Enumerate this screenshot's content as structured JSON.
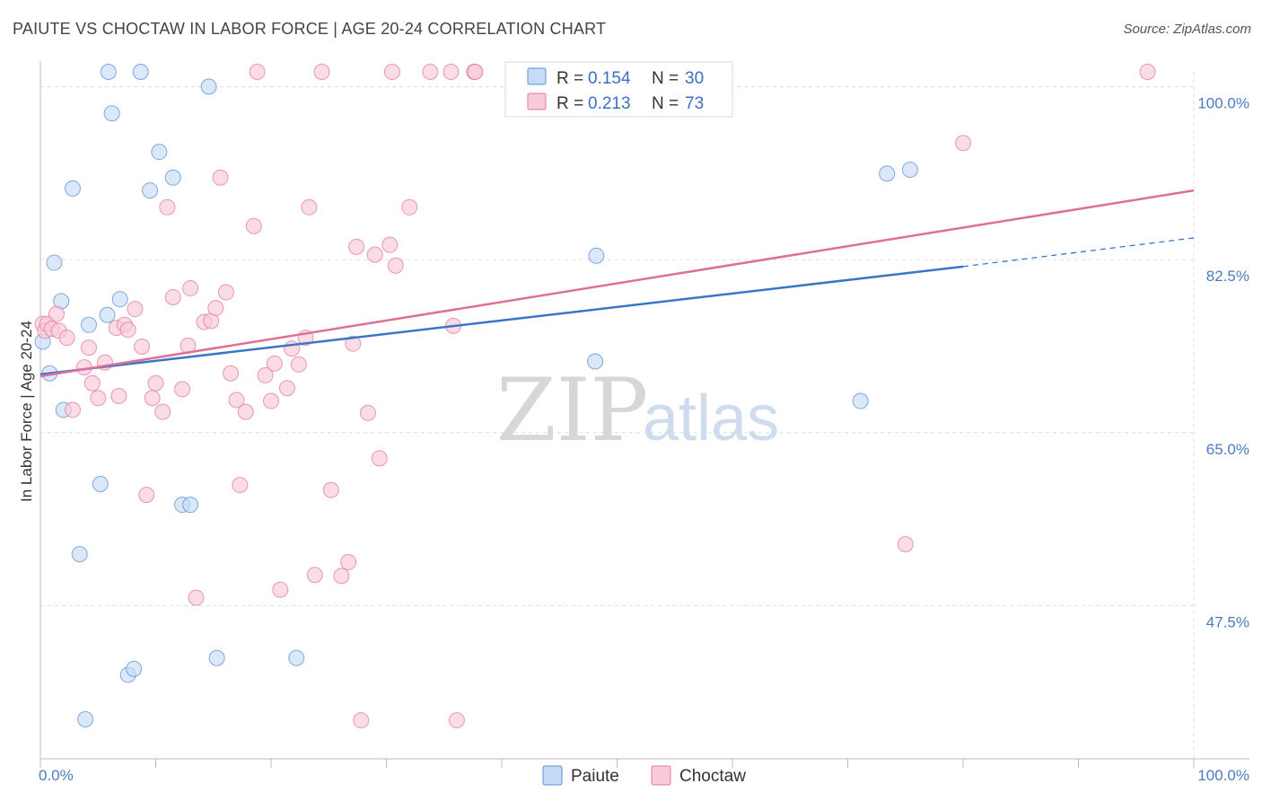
{
  "title": "PAIUTE VS CHOCTAW IN LABOR FORCE | AGE 20-24 CORRELATION CHART",
  "source": "Source: ZipAtlas.com",
  "watermark": {
    "zip": "ZIP",
    "atlas": "atlas"
  },
  "colors": {
    "paiute": "#5b8fd6",
    "paiute_fill": "#c6dbf7",
    "choctaw": "#e07a9e",
    "choctaw_fill": "#f9cad9",
    "paiute_line": "#3a76c8",
    "choctaw_line": "#e06f98",
    "grid": "#dedede"
  },
  "legend": {
    "rows": [
      {
        "r_label": "R = ",
        "r_value": "0.154",
        "n_label": "N = ",
        "n_value": "30"
      },
      {
        "r_label": "R = ",
        "r_value": "0.213",
        "n_label": "N = ",
        "n_value": "73"
      }
    ]
  },
  "chart_data": {
    "type": "scatter",
    "title": "PAIUTE VS CHOCTAW IN LABOR FORCE | AGE 20-24 CORRELATION CHART",
    "xlabel": "",
    "ylabel": "In Labor Force | Age 20-24",
    "xlim": [
      0,
      100
    ],
    "ylim": [
      32.0,
      101.5
    ],
    "x_tick_labels": [
      "0.0%",
      "100.0%"
    ],
    "y_ticks": [
      {
        "value": 100.0,
        "label": "100.0%"
      },
      {
        "value": 82.5,
        "label": "82.5%"
      },
      {
        "value": 65.0,
        "label": "65.0%"
      },
      {
        "value": 47.5,
        "label": "47.5%"
      }
    ],
    "grid": true,
    "legend_position": "top-center",
    "series": [
      {
        "name": "Paiute",
        "points": [
          [
            0.2,
            74.2
          ],
          [
            0.8,
            71.0
          ],
          [
            1.2,
            82.2
          ],
          [
            1.8,
            78.3
          ],
          [
            2.0,
            67.3
          ],
          [
            2.8,
            89.7
          ],
          [
            3.4,
            52.7
          ],
          [
            3.9,
            36.0
          ],
          [
            4.2,
            75.9
          ],
          [
            5.2,
            59.8
          ],
          [
            5.9,
            101.5
          ],
          [
            5.8,
            76.9
          ],
          [
            6.2,
            97.3
          ],
          [
            6.9,
            78.5
          ],
          [
            7.6,
            40.5
          ],
          [
            8.1,
            41.1
          ],
          [
            8.7,
            101.5
          ],
          [
            9.5,
            89.5
          ],
          [
            10.3,
            93.4
          ],
          [
            11.5,
            90.8
          ],
          [
            12.3,
            57.7
          ],
          [
            13.0,
            57.7
          ],
          [
            14.6,
            100.0
          ],
          [
            15.3,
            42.2
          ],
          [
            22.2,
            42.2
          ],
          [
            48.1,
            72.2
          ],
          [
            48.2,
            82.9
          ],
          [
            71.1,
            68.2
          ],
          [
            73.4,
            91.2
          ],
          [
            75.4,
            91.6
          ]
        ],
        "trend": {
          "x": [
            0,
            80
          ],
          "y": [
            70.9,
            81.8
          ]
        },
        "trend_dashed": {
          "x": [
            80,
            100
          ],
          "y": [
            81.8,
            84.7
          ]
        }
      },
      {
        "name": "Choctaw",
        "points": [
          [
            0.2,
            76.0
          ],
          [
            0.4,
            75.3
          ],
          [
            0.6,
            76.0
          ],
          [
            1.0,
            75.5
          ],
          [
            1.4,
            77.0
          ],
          [
            1.6,
            75.3
          ],
          [
            2.3,
            74.6
          ],
          [
            2.8,
            67.3
          ],
          [
            3.8,
            71.6
          ],
          [
            4.2,
            73.6
          ],
          [
            4.5,
            70.0
          ],
          [
            5.0,
            68.5
          ],
          [
            5.6,
            72.1
          ],
          [
            6.6,
            75.6
          ],
          [
            6.8,
            68.7
          ],
          [
            7.3,
            75.9
          ],
          [
            7.6,
            75.4
          ],
          [
            8.2,
            77.5
          ],
          [
            8.8,
            73.7
          ],
          [
            9.2,
            58.7
          ],
          [
            9.7,
            68.5
          ],
          [
            10.0,
            70.0
          ],
          [
            10.6,
            67.1
          ],
          [
            11.0,
            87.8
          ],
          [
            11.5,
            78.7
          ],
          [
            12.3,
            69.4
          ],
          [
            12.8,
            73.8
          ],
          [
            13.0,
            79.6
          ],
          [
            13.5,
            48.3
          ],
          [
            14.2,
            76.2
          ],
          [
            14.8,
            76.3
          ],
          [
            15.2,
            77.6
          ],
          [
            15.6,
            90.8
          ],
          [
            16.1,
            79.2
          ],
          [
            16.5,
            71.0
          ],
          [
            17.0,
            68.3
          ],
          [
            17.3,
            59.7
          ],
          [
            17.8,
            67.1
          ],
          [
            18.5,
            85.9
          ],
          [
            18.8,
            101.5
          ],
          [
            19.5,
            70.8
          ],
          [
            20.0,
            68.2
          ],
          [
            20.3,
            72.0
          ],
          [
            20.8,
            49.1
          ],
          [
            21.4,
            69.5
          ],
          [
            21.8,
            73.5
          ],
          [
            22.4,
            71.9
          ],
          [
            23.0,
            74.6
          ],
          [
            23.3,
            87.8
          ],
          [
            23.8,
            50.6
          ],
          [
            25.2,
            59.2
          ],
          [
            24.4,
            101.5
          ],
          [
            26.1,
            50.5
          ],
          [
            26.7,
            51.9
          ],
          [
            27.1,
            74.0
          ],
          [
            27.4,
            83.8
          ],
          [
            27.8,
            35.9
          ],
          [
            28.4,
            67.0
          ],
          [
            29.0,
            83.0
          ],
          [
            29.4,
            62.4
          ],
          [
            30.3,
            84.0
          ],
          [
            30.8,
            81.9
          ],
          [
            30.5,
            101.5
          ],
          [
            32.0,
            87.8
          ],
          [
            33.8,
            101.5
          ],
          [
            35.6,
            101.5
          ],
          [
            35.8,
            75.8
          ],
          [
            36.1,
            35.9
          ],
          [
            37.6,
            101.5
          ],
          [
            37.7,
            101.5
          ],
          [
            75.0,
            53.7
          ],
          [
            80.0,
            94.3
          ],
          [
            96.0,
            101.5
          ]
        ],
        "trend": {
          "x": [
            0,
            100
          ],
          "y": [
            70.7,
            89.5
          ]
        }
      }
    ]
  }
}
